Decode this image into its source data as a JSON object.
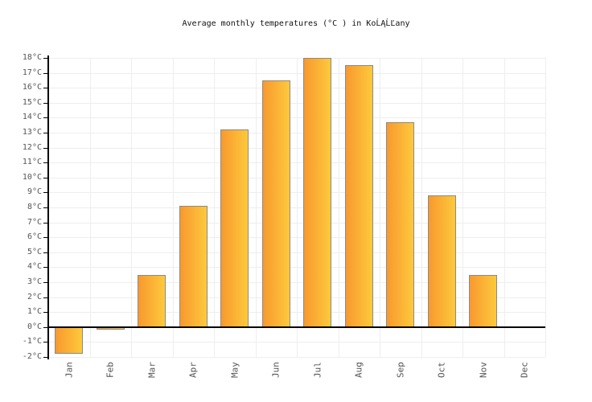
{
  "chart_data": {
    "type": "bar",
    "title": "Average monthly temperatures (°C ) in KoĹĄĹĽany",
    "categories": [
      "Jan",
      "Feb",
      "Mar",
      "Apr",
      "May",
      "Jun",
      "Jul",
      "Aug",
      "Sep",
      "Oct",
      "Nov",
      "Dec"
    ],
    "values": [
      -1.8,
      -0.2,
      3.5,
      8.1,
      13.2,
      16.5,
      18,
      17.5,
      13.7,
      8.8,
      3.5,
      0
    ],
    "xlabel": "",
    "ylabel": "",
    "ylim": [
      -2,
      18
    ],
    "y_tick_step": 1,
    "y_tick_labels": [
      "18°C",
      "17°C",
      "16°C",
      "15°C",
      "14°C",
      "13°C",
      "12°C",
      "11°C",
      "10°C",
      "9°C",
      "8°C",
      "7°C",
      "6°C",
      "5°C",
      "4°C",
      "3°C",
      "2°C",
      "1°C",
      "0°C",
      "-1°C",
      "-2°C"
    ],
    "x_label_rotation_deg": -90,
    "grid": true,
    "legend_position": "none",
    "colors": {
      "bar_gradient_left": "#F8992F",
      "bar_gradient_right": "#FDC93C",
      "bar_border": "#8A8A8A",
      "axis_line": "#000000",
      "gridline": "#EEEEEE",
      "tick_label": "#555555",
      "title_text": "#111111",
      "background": "#FFFFFF"
    }
  }
}
